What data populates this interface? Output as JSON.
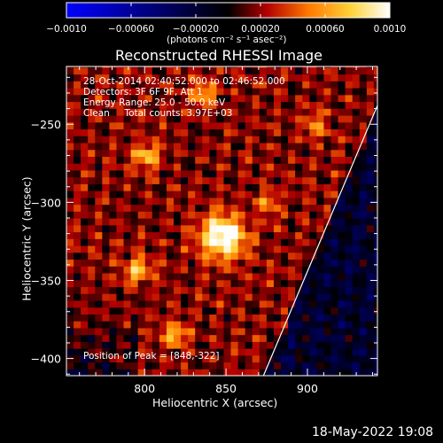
{
  "chart_data": {
    "type": "heatmap",
    "title": "Reconstructed RHESSI Image",
    "xlabel": "Heliocentric X (arcsec)",
    "ylabel": "Heliocentric Y (arcsec)",
    "xlim": [
      752,
      943
    ],
    "ylim": [
      -411,
      -213
    ],
    "x_ticks": [
      800,
      850,
      900
    ],
    "y_ticks": [
      -250,
      -300,
      -350,
      -400
    ],
    "x_tick_labels": [
      "800",
      "850",
      "900"
    ],
    "y_tick_labels": [
      "−250",
      "−300",
      "−350",
      "−400"
    ],
    "colorbar": {
      "range": [
        -0.001,
        0.001
      ],
      "ticks": [
        -0.001,
        -0.0006,
        -0.0002,
        0.0002,
        0.0006,
        0.001
      ],
      "tick_labels": [
        "−0.0010",
        "−0.00060",
        "−0.00020",
        "0.00020",
        "0.00060",
        "0.0010"
      ],
      "unit_label": "(photons cm⁻² s⁻¹ asec⁻²)",
      "colors": [
        "#0000ff",
        "#000000",
        "#b30000",
        "#ff7a00",
        "#ffd23a",
        "#ffffff"
      ]
    },
    "peak": [
      848,
      -322
    ],
    "sources": [
      {
        "x": 848,
        "y": -322,
        "value": 0.00095
      },
      {
        "x": 801,
        "y": -270,
        "value": 0.00055
      },
      {
        "x": 796,
        "y": -343,
        "value": 0.0006
      },
      {
        "x": 818,
        "y": -385,
        "value": 0.0005
      },
      {
        "x": 836,
        "y": -230,
        "value": 0.00045
      },
      {
        "x": 905,
        "y": -250,
        "value": 0.0004
      },
      {
        "x": 876,
        "y": -300,
        "value": 0.00035
      }
    ],
    "limb": [
      [
        873,
        -411
      ],
      [
        943,
        -238
      ]
    ],
    "annotations": [
      "28-Oct-2014 02:40:52.000 to 02:46:52.000",
      "Detectors: 3F 6F 9F, Att 1",
      "Energy Range: 25.0 - 50.0 keV",
      "Clean     Total counts: 3.97E+03",
      "Position of Peak = [848,-322]"
    ],
    "timestamp": "18-May-2022 19:08"
  }
}
